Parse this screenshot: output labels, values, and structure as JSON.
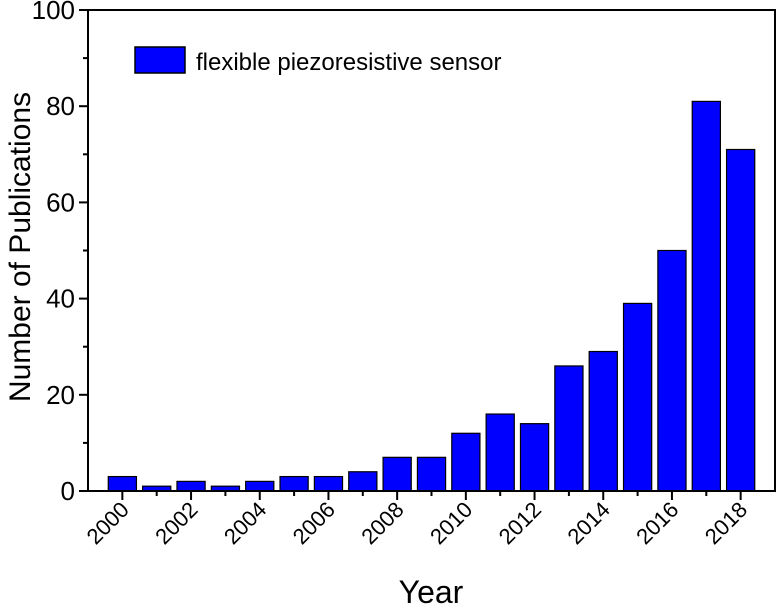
{
  "chart_data": {
    "type": "bar",
    "xlabel": "Year",
    "ylabel": "Number of Publications",
    "ylim": [
      0,
      100
    ],
    "y_ticks": [
      "0",
      "20",
      "40",
      "60",
      "80",
      "100"
    ],
    "xlim": [
      1999,
      2019
    ],
    "x_tick_labels": [
      "2000",
      "2002",
      "2004",
      "2006",
      "2008",
      "2010",
      "2012",
      "2014",
      "2016",
      "2018"
    ],
    "series": [
      {
        "name": "flexible piezoresistive sensor",
        "color": "#0000ff",
        "x": [
          2000,
          2001,
          2002,
          2003,
          2004,
          2005,
          2006,
          2007,
          2008,
          2009,
          2010,
          2011,
          2012,
          2013,
          2014,
          2015,
          2016,
          2017,
          2018
        ],
        "values": [
          3,
          1,
          2,
          1,
          2,
          3,
          3,
          4,
          7,
          7,
          12,
          16,
          14,
          26,
          29,
          39,
          50,
          81,
          71
        ]
      }
    ],
    "legend_position": "top-left",
    "grid": false
  }
}
